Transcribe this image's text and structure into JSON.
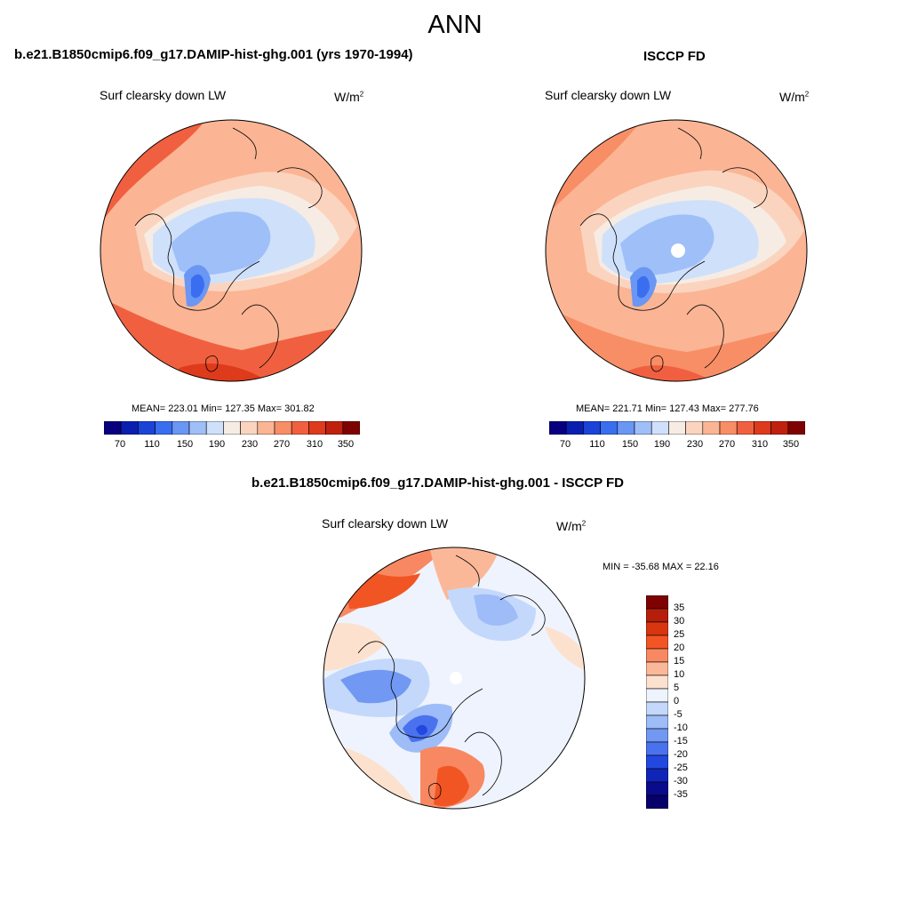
{
  "title": "ANN",
  "panels": {
    "model": {
      "title": "b.e21.B1850cmip6.f09_g17.DAMIP-hist-ghg.001 (yrs 1970-1994)",
      "variable": "Surf clearsky down LW",
      "units_base": "W/m",
      "units_exp": "2",
      "stats": "MEAN= 223.01  Min= 127.35  Max= 301.82"
    },
    "obs": {
      "title": "ISCCP FD",
      "variable": "Surf clearsky down LW",
      "units_base": "W/m",
      "units_exp": "2",
      "stats": "MEAN= 221.71  Min= 127.43  Max= 277.76"
    },
    "diff": {
      "title": "b.e21.B1850cmip6.f09_g17.DAMIP-hist-ghg.001 - ISCCP FD",
      "variable": "Surf clearsky down LW",
      "units_base": "W/m",
      "units_exp": "2",
      "stats": "MIN = -35.68 MAX =  22.16"
    }
  },
  "colorbars": {
    "absolute": {
      "labels": [
        "70",
        "110",
        "150",
        "190",
        "230",
        "270",
        "310",
        "350"
      ],
      "colors": [
        "#08007f",
        "#0a1fb0",
        "#1b43d8",
        "#3a6ef0",
        "#6a96f4",
        "#9fbff8",
        "#cfe0fb",
        "#f6ece3",
        "#fbd4bf",
        "#fbb594",
        "#f88e66",
        "#f06040",
        "#de3a1c",
        "#c0210e",
        "#7f0202"
      ]
    },
    "difference": {
      "labels": [
        "35",
        "30",
        "25",
        "20",
        "15",
        "10",
        "5",
        "0",
        "-5",
        "-10",
        "-15",
        "-20",
        "-25",
        "-30",
        "-35"
      ],
      "colors": [
        "#7f0202",
        "#b41e0a",
        "#d8360e",
        "#f25524",
        "#f88862",
        "#fbb898",
        "#fde1cf",
        "#eef3fd",
        "#c4d8fb",
        "#9dbcf8",
        "#7198f2",
        "#4a72ee",
        "#2248e0",
        "#1025b8",
        "#0a0a8c",
        "#06006a"
      ]
    }
  }
}
